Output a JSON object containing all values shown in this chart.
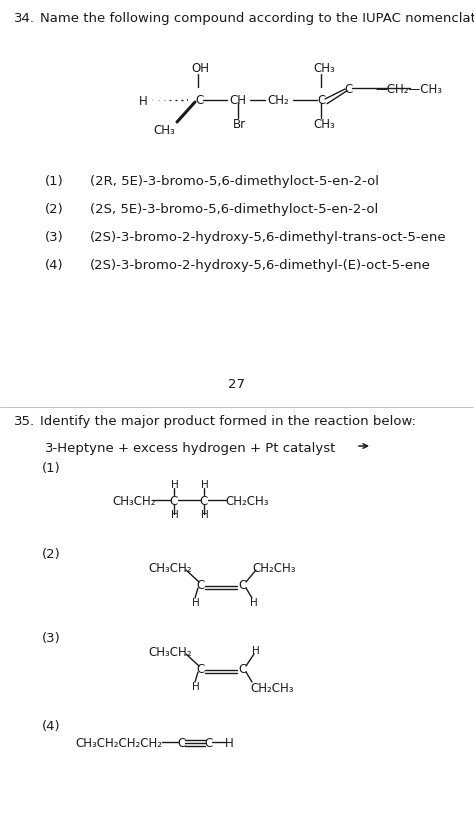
{
  "bg_color": "#ffffff",
  "q34_number": "34.",
  "q34_text": "Name the following compound according to the IUPAC nomenclature:",
  "q34_options": [
    [
      "(1)",
      "(2R, 5E)-3-bromo-5,6-dimethyloct-5-en-2-ol"
    ],
    [
      "(2)",
      "(2S, 5E)-3-bromo-5,6-dimethyloct-5-en-2-ol"
    ],
    [
      "(3)",
      "(2S)-3-bromo-2-hydroxy-5,6-dimethyl-trans-oct-5-ene"
    ],
    [
      "(4)",
      "(2S)-3-bromo-2-hydroxy-5,6-dimethyl-(E)-oct-5-ene"
    ]
  ],
  "page_num": "27",
  "q35_number": "35.",
  "q35_text": "Identify the major product formed in the reaction below:",
  "q35_options": [
    "(1)",
    "(2)",
    "(3)",
    "(4)"
  ],
  "text_color": "#1a1a1a",
  "font_size_body": 9.5,
  "font_size_chem": 8.5,
  "font_size_small": 7.5
}
